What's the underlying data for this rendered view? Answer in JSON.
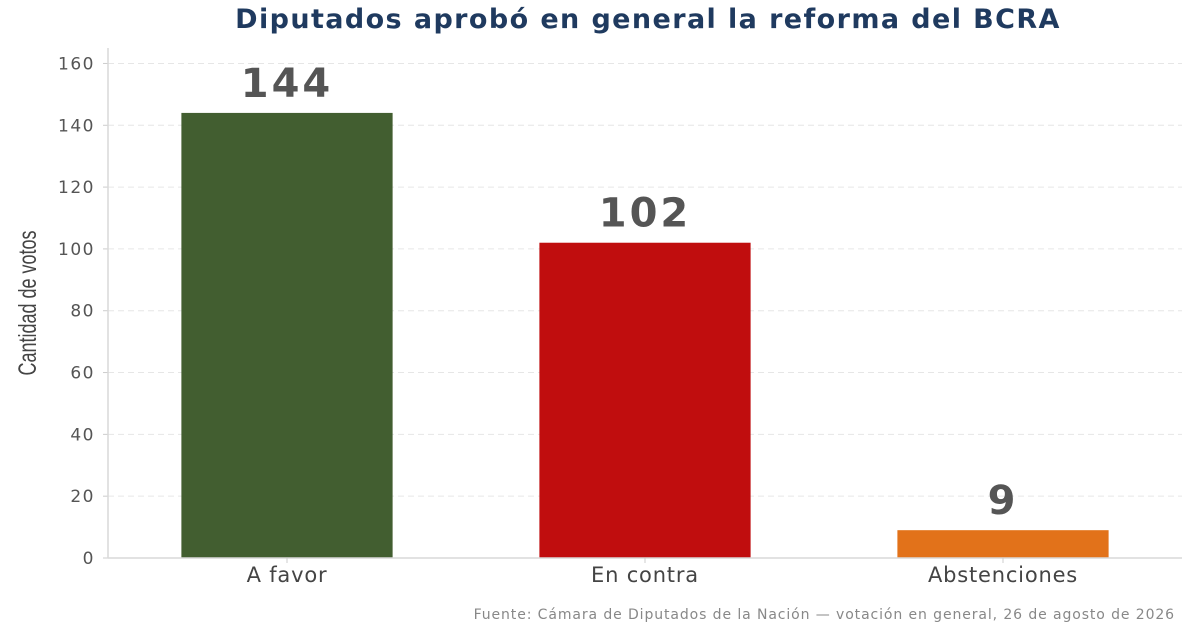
{
  "chart_data": {
    "type": "bar",
    "title": "Diputados aprobó en general la reforma del BCRA",
    "ylabel": "Cantidad de votos",
    "xlabel": "",
    "categories": [
      "A favor",
      "En contra",
      "Abstenciones"
    ],
    "values": [
      144,
      102,
      9
    ],
    "colors": [
      "#425e30",
      "#c00d0e",
      "#e2721a"
    ],
    "ylim": [
      0,
      165
    ],
    "yticks": [
      0,
      20,
      40,
      60,
      80,
      100,
      120,
      140,
      160
    ],
    "ytick_labels": [
      "0",
      "20",
      "40",
      "60",
      "80",
      "100",
      "120",
      "140",
      "160"
    ],
    "grid": true,
    "legend": "none",
    "source": "Fuente: Cámara de Diputados de la Nación — votación en general, 26 de agosto de 2026"
  }
}
